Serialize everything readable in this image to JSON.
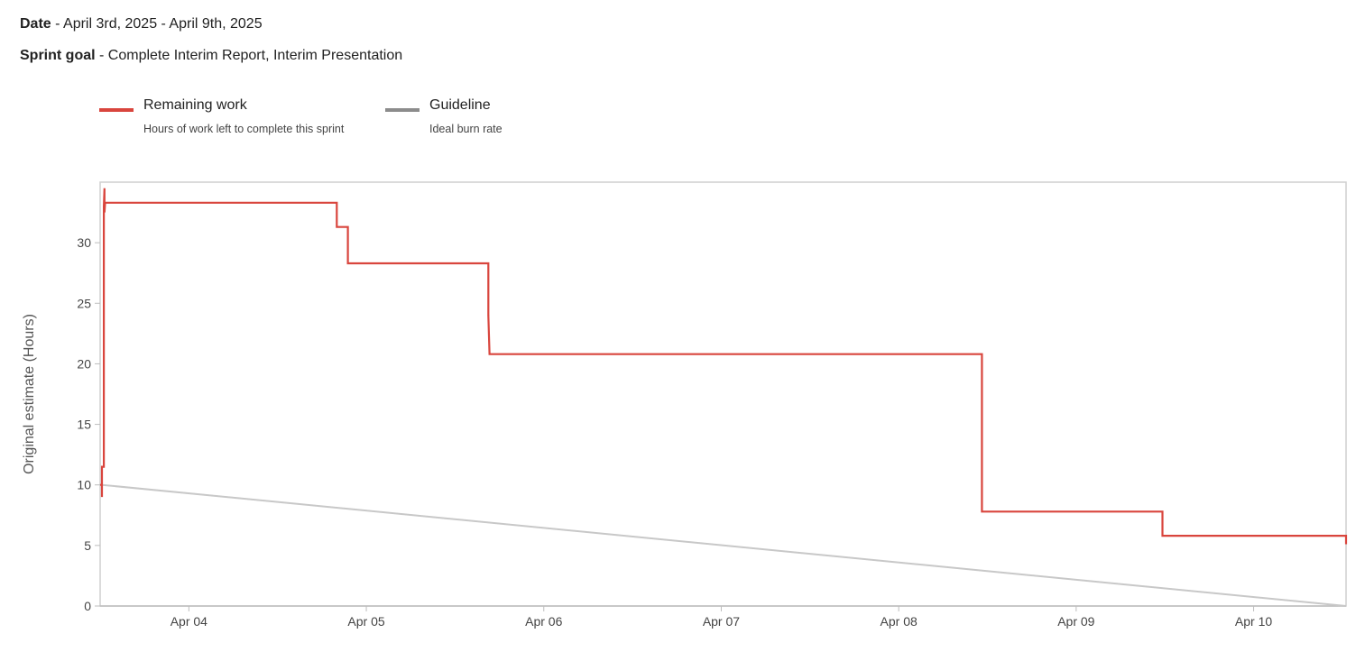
{
  "header": {
    "date_label": "Date",
    "date_value": " - April 3rd, 2025 - April 9th, 2025",
    "goal_label": "Sprint goal",
    "goal_value": " - Complete Interim Report, Interim Presentation"
  },
  "legend": [
    {
      "title": "Remaining work",
      "description": "Hours of work left to complete this sprint",
      "color": "#d9453d"
    },
    {
      "title": "Guideline",
      "description": "Ideal burn rate",
      "color": "#8c8c8c"
    }
  ],
  "chart_data": {
    "type": "line",
    "title": "",
    "xlabel": "",
    "ylabel": "Original estimate (Hours)",
    "ylim": [
      0,
      35
    ],
    "yticks": [
      0,
      5,
      10,
      15,
      20,
      25,
      30
    ],
    "xlim": [
      "2025-04-03T12:00",
      "2025-04-10T12:30"
    ],
    "xticks": [
      "Apr 04",
      "Apr 05",
      "Apr 06",
      "Apr 07",
      "Apr 08",
      "Apr 09",
      "Apr 10"
    ],
    "grid": false,
    "legend_position": "top-left",
    "series": [
      {
        "name": "Remaining work",
        "color": "#d9453d",
        "step": true,
        "points": [
          [
            "2025-04-03T12:00",
            10
          ],
          [
            "2025-04-03T12:15",
            10
          ],
          [
            "2025-04-03T12:15",
            9
          ],
          [
            "2025-04-03T12:15",
            11.5
          ],
          [
            "2025-04-03T12:30",
            11.5
          ],
          [
            "2025-04-03T12:30",
            33
          ],
          [
            "2025-04-03T12:35",
            34.5
          ],
          [
            "2025-04-03T12:35",
            32.5
          ],
          [
            "2025-04-03T12:40",
            33.3
          ],
          [
            "2025-04-04T20:00",
            33.3
          ],
          [
            "2025-04-04T20:00",
            31.3
          ],
          [
            "2025-04-04T21:30",
            31.3
          ],
          [
            "2025-04-04T21:30",
            28.3
          ],
          [
            "2025-04-05T16:30",
            28.3
          ],
          [
            "2025-04-05T16:30",
            24
          ],
          [
            "2025-04-05T16:40",
            20.8
          ],
          [
            "2025-04-08T11:15",
            20.8
          ],
          [
            "2025-04-08T11:15",
            7.8
          ],
          [
            "2025-04-09T11:40",
            7.8
          ],
          [
            "2025-04-09T11:40",
            5.8
          ],
          [
            "2025-04-10T12:30",
            5.8
          ],
          [
            "2025-04-10T12:30",
            5.1
          ]
        ]
      },
      {
        "name": "Guideline",
        "color": "#c8c8c8",
        "points": [
          [
            "2025-04-03T12:15",
            10
          ],
          [
            "2025-04-10T12:30",
            0
          ]
        ]
      }
    ]
  }
}
